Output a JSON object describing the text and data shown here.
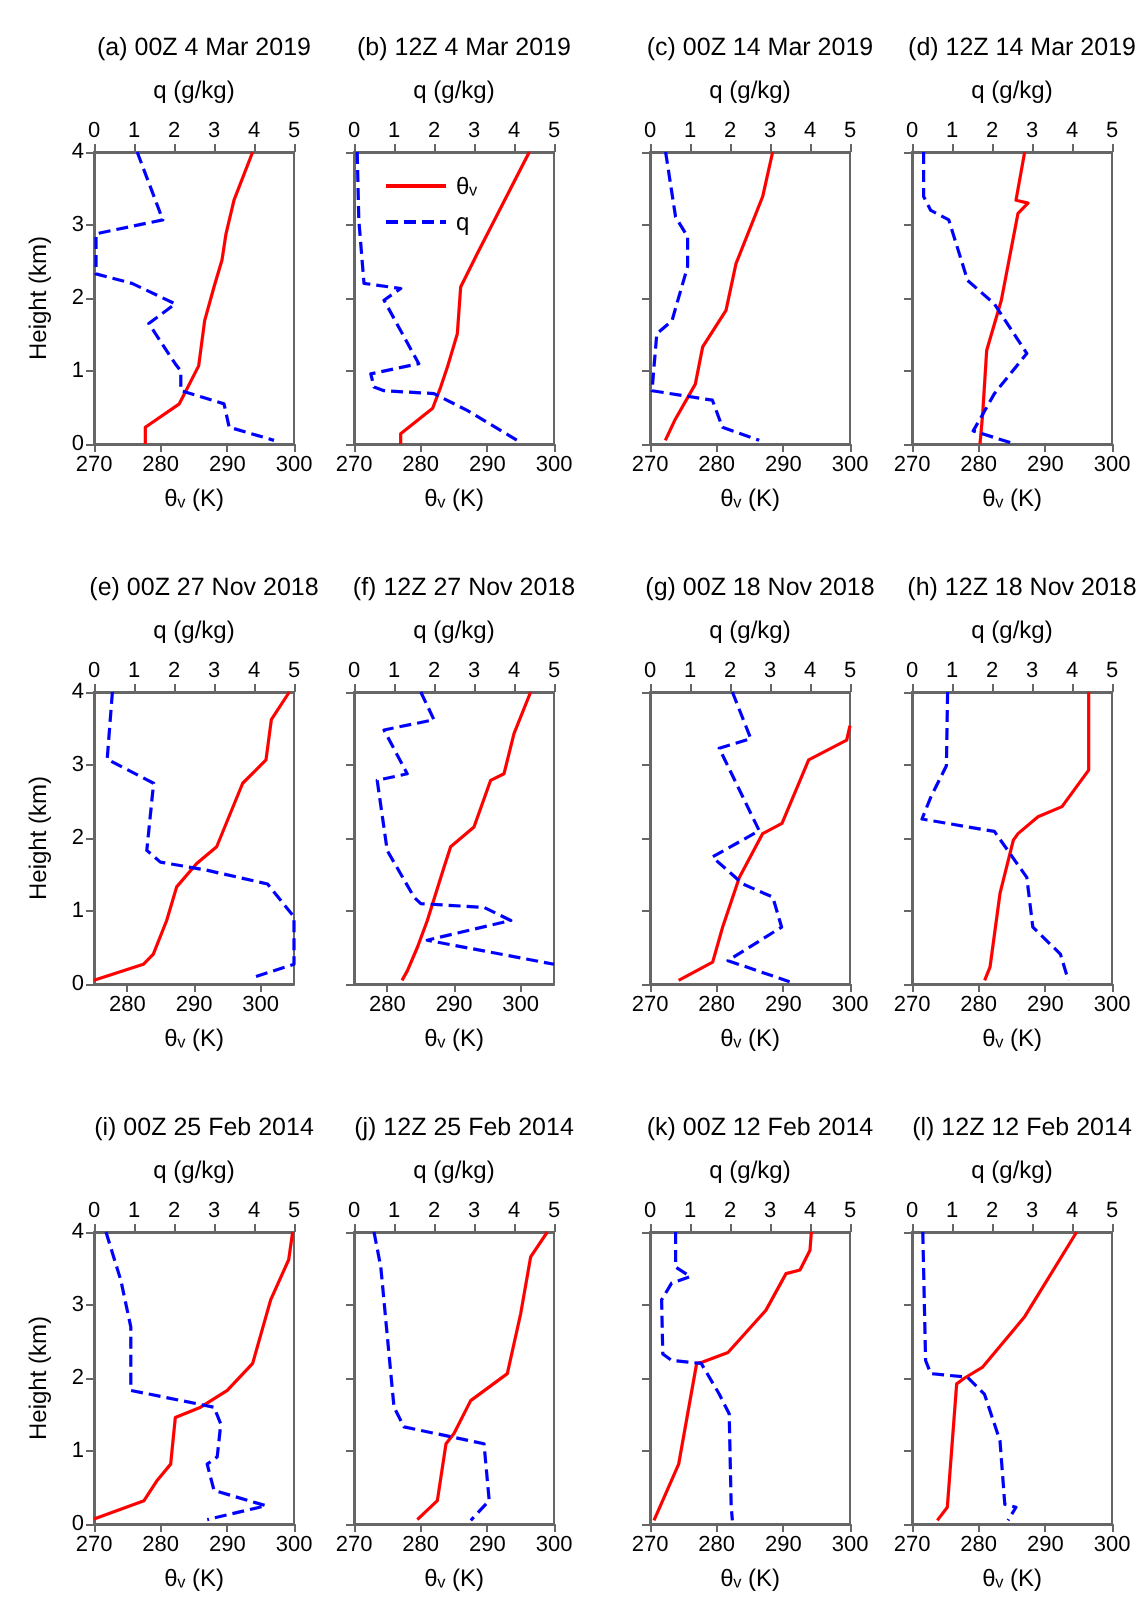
{
  "chart_data": [
    {
      "type": "line",
      "title": "(a) 00Z 4 Mar 2019",
      "xlabel": "θᵥ (K)",
      "x2label": "q (g/kg)",
      "ylabel": "Height (km)",
      "xlim": [
        270,
        300
      ],
      "xticks": [
        270,
        280,
        290,
        300
      ],
      "x2lim": [
        0,
        5
      ],
      "x2ticks": [
        0,
        1,
        2,
        3,
        4,
        5
      ],
      "ylim": [
        0,
        4
      ],
      "yticks": [
        0,
        1,
        2,
        3,
        4
      ],
      "marker": "none",
      "series": [
        {
          "color": "#ff0000",
          "line_style": "solid",
          "x": [
            277.7,
            277.7,
            282.8,
            285.7,
            286.6,
            288,
            289.2,
            289.8,
            291,
            293.8
          ],
          "values": [
            0,
            0.23,
            0.55,
            1.07,
            1.69,
            2.15,
            2.52,
            2.88,
            3.34,
            4
          ]
        },
        {
          "color": "#0000ff",
          "line_style": "dashed",
          "axis": "x2",
          "x": [
            1.08,
            1.72,
            0.05,
            0.05,
            0.95,
            2.03,
            1.37,
            2.03,
            2.17,
            2.17,
            3.25,
            3.38,
            4.5
          ],
          "values": [
            4,
            3.07,
            2.88,
            2.33,
            2.2,
            1.92,
            1.65,
            1.1,
            1.0,
            0.73,
            0.55,
            0.23,
            0.05
          ]
        }
      ]
    },
    {
      "type": "line",
      "title": "(b) 12Z 4 Mar 2019",
      "xlabel": "θᵥ (K)",
      "x2label": "q (g/kg)",
      "xlim": [
        270,
        300
      ],
      "xticks": [
        270,
        280,
        290,
        300
      ],
      "x2lim": [
        0,
        5
      ],
      "x2ticks": [
        0,
        1,
        2,
        3,
        4,
        5
      ],
      "ylim": [
        0,
        4
      ],
      "yticks": [
        0,
        1,
        2,
        3,
        4
      ],
      "tick_labels": "x",
      "marker": "none",
      "legend": "top left",
      "series": [
        {
          "name": "θᵥ",
          "color": "#ff0000",
          "line_style": "solid",
          "x": [
            277,
            277,
            281.8,
            283,
            284,
            285.5,
            286,
            288.5,
            296.3
          ],
          "values": [
            0,
            0.14,
            0.49,
            0.78,
            1.05,
            1.51,
            2.15,
            2.61,
            4
          ]
        },
        {
          "name": "q",
          "color": "#0000ff",
          "line_style": "dashed",
          "axis": "x2",
          "x": [
            0.08,
            0.12,
            0.25,
            1.17,
            0.75,
            1.62,
            0.42,
            0.5,
            0.75,
            2,
            2.83,
            4.08
          ],
          "values": [
            4,
            3.07,
            2.2,
            2.13,
            1.97,
            1.1,
            0.96,
            0.78,
            0.73,
            0.69,
            0.46,
            0.05
          ]
        }
      ]
    },
    {
      "type": "line",
      "title": "(c) 00Z 14 Mar 2019",
      "xlabel": "θᵥ (K)",
      "x2label": "q (g/kg)",
      "xlim": [
        270,
        300
      ],
      "xticks": [
        270,
        280,
        290,
        300
      ],
      "x2lim": [
        0,
        5
      ],
      "x2ticks": [
        0,
        1,
        2,
        3,
        4,
        5
      ],
      "ylim": [
        0,
        4
      ],
      "yticks": [
        0,
        1,
        2,
        3,
        4
      ],
      "tick_labels": "x",
      "marker": "none",
      "series": [
        {
          "color": "#ff0000",
          "line_style": "solid",
          "x": [
            272.3,
            273.8,
            276.8,
            277.9,
            281.4,
            282.9,
            286.9,
            288.4
          ],
          "values": [
            0.05,
            0.34,
            0.82,
            1.33,
            1.83,
            2.47,
            3.39,
            4
          ]
        },
        {
          "color": "#0000ff",
          "line_style": "dashed",
          "axis": "x2",
          "x": [
            0.39,
            0.64,
            0.94,
            0.94,
            0.55,
            0.17,
            0.05,
            1.56,
            1.81,
            2.73
          ],
          "values": [
            4,
            3.11,
            2.84,
            2.43,
            1.69,
            1.51,
            0.73,
            0.6,
            0.23,
            0.05
          ]
        }
      ]
    },
    {
      "type": "line",
      "title": "(d) 12Z 14 Mar 2019",
      "xlabel": "θᵥ (K)",
      "x2label": "q (g/kg)",
      "xlim": [
        270,
        300
      ],
      "xticks": [
        270,
        280,
        290,
        300
      ],
      "x2lim": [
        0,
        5
      ],
      "x2ticks": [
        0,
        1,
        2,
        3,
        4,
        5
      ],
      "ylim": [
        0,
        4
      ],
      "yticks": [
        0,
        1,
        2,
        3,
        4
      ],
      "tick_labels": "x",
      "marker": "none",
      "series": [
        {
          "color": "#ff0000",
          "line_style": "solid",
          "x": [
            280.2,
            280.6,
            281.2,
            283.4,
            285.9,
            287.4,
            285.6,
            286.9
          ],
          "values": [
            0,
            0.41,
            1.28,
            1.97,
            3.16,
            3.3,
            3.34,
            4
          ]
        },
        {
          "color": "#0000ff",
          "line_style": "dashed",
          "axis": "x2",
          "x": [
            0.29,
            0.29,
            0.47,
            0.92,
            1.39,
            2.06,
            2.87,
            2.06,
            1.73,
            1.53,
            2.57
          ],
          "values": [
            4,
            3.39,
            3.2,
            3.07,
            2.24,
            1.92,
            1.24,
            0.69,
            0.37,
            0.18,
            0
          ]
        }
      ]
    },
    {
      "type": "line",
      "title": "(e) 00Z 27 Nov 2018",
      "xlabel": "θᵥ (K)",
      "x2label": "q (g/kg)",
      "ylabel": "Height (km)",
      "xlim": [
        275,
        305
      ],
      "xticks": [
        280,
        290,
        300
      ],
      "x2lim": [
        0,
        5
      ],
      "x2ticks": [
        0,
        1,
        2,
        3,
        4,
        5
      ],
      "ylim": [
        0,
        4
      ],
      "yticks": [
        0,
        1,
        2,
        3,
        4
      ],
      "marker": "none",
      "series": [
        {
          "color": "#ff0000",
          "line_style": "solid",
          "x": [
            275,
            282.4,
            283.9,
            285.9,
            287.4,
            290.4,
            293.4,
            297.3,
            300.8,
            301.6,
            304.3
          ],
          "values": [
            0.05,
            0.27,
            0.41,
            0.87,
            1.33,
            1.65,
            1.88,
            2.75,
            3.07,
            3.62,
            4
          ]
        },
        {
          "color": "#0000ff",
          "line_style": "dashed",
          "axis": "x2",
          "x": [
            0.46,
            0.33,
            1.49,
            1.32,
            1.66,
            2.81,
            4.34,
            5,
            5,
            3.97
          ],
          "values": [
            4,
            3.08,
            2.75,
            1.83,
            1.67,
            1.56,
            1.37,
            0.92,
            0.27,
            0.09
          ]
        }
      ]
    },
    {
      "type": "line",
      "title": "(f) 12Z 27 Nov 2018",
      "xlabel": "θᵥ (K)",
      "x2label": "q (g/kg)",
      "xlim": [
        275,
        305
      ],
      "xticks": [
        280,
        290,
        300
      ],
      "x2lim": [
        0,
        5
      ],
      "x2ticks": [
        0,
        1,
        2,
        3,
        4,
        5
      ],
      "ylim": [
        0,
        4
      ],
      "yticks": [
        0,
        1,
        2,
        3,
        4
      ],
      "tick_labels": "x",
      "marker": "none",
      "series": [
        {
          "color": "#ff0000",
          "line_style": "solid",
          "x": [
            282.2,
            283,
            284.5,
            286,
            288.5,
            289.5,
            293,
            295.5,
            297.5,
            299,
            301.5
          ],
          "values": [
            0.05,
            0.18,
            0.5,
            0.87,
            1.6,
            1.88,
            2.15,
            2.79,
            2.88,
            3.43,
            4
          ]
        },
        {
          "color": "#0000ff",
          "line_style": "dashed",
          "axis": "x2",
          "x": [
            1.67,
            2,
            0.75,
            1.33,
            0.58,
            0.83,
            1.5,
            1.67,
            3.25,
            3.92,
            1.83,
            5
          ],
          "values": [
            4,
            3.62,
            3.48,
            2.88,
            2.79,
            1.83,
            1.19,
            1.1,
            1.05,
            0.87,
            0.6,
            0.27
          ]
        }
      ]
    },
    {
      "type": "line",
      "title": "(g) 00Z 18 Nov 2018",
      "xlabel": "θᵥ (K)",
      "x2label": "q (g/kg)",
      "xlim": [
        270,
        300
      ],
      "xticks": [
        270,
        280,
        290,
        300
      ],
      "x2lim": [
        0,
        5
      ],
      "x2ticks": [
        0,
        1,
        2,
        3,
        4,
        5
      ],
      "ylim": [
        0,
        4
      ],
      "yticks": [
        0,
        1,
        2,
        3,
        4
      ],
      "tick_labels": "x",
      "marker": "none",
      "series": [
        {
          "color": "#ff0000",
          "line_style": "solid",
          "x": [
            274.3,
            279.4,
            280.9,
            283.4,
            286.9,
            289.8,
            293.8,
            299.5,
            300
          ],
          "values": [
            0.05,
            0.3,
            0.78,
            1.46,
            2.06,
            2.2,
            3.07,
            3.34,
            3.54
          ]
        },
        {
          "color": "#0000ff",
          "line_style": "dashed",
          "axis": "x2",
          "x": [
            2.06,
            2.52,
            1.73,
            2.73,
            1.56,
            2.32,
            3.07,
            3.29,
            1.95,
            3.49
          ],
          "values": [
            4,
            3.36,
            3.23,
            2.1,
            1.74,
            1.37,
            1.19,
            0.78,
            0.32,
            0.03
          ]
        }
      ]
    },
    {
      "type": "line",
      "title": "(h) 12Z 18 Nov 2018",
      "xlabel": "θᵥ (K)",
      "x2label": "q (g/kg)",
      "xlim": [
        270,
        300
      ],
      "xticks": [
        270,
        280,
        290,
        300
      ],
      "x2lim": [
        0,
        5
      ],
      "x2ticks": [
        0,
        1,
        2,
        3,
        4,
        5
      ],
      "ylim": [
        0,
        4
      ],
      "yticks": [
        0,
        1,
        2,
        3,
        4
      ],
      "tick_labels": "x",
      "marker": "none",
      "series": [
        {
          "color": "#ff0000",
          "line_style": "solid",
          "x": [
            280.9,
            281.7,
            283.2,
            285.2,
            285.9,
            288.9,
            292.5,
            296.5,
            296.5
          ],
          "values": [
            0.05,
            0.23,
            1.24,
            1.97,
            2.06,
            2.29,
            2.43,
            2.93,
            4
          ]
        },
        {
          "color": "#0000ff",
          "line_style": "dashed",
          "axis": "x2",
          "x": [
            0.89,
            0.86,
            0.47,
            0.25,
            2.06,
            2.87,
            3.02,
            3.71,
            3.91
          ],
          "values": [
            4,
            2.99,
            2.56,
            2.26,
            2.09,
            1.46,
            0.78,
            0.41,
            0.05
          ]
        }
      ]
    },
    {
      "type": "line",
      "title": "(i) 00Z 25 Feb 2014",
      "xlabel": "θᵥ (K)",
      "x2label": "q (g/kg)",
      "ylabel": "Height (km)",
      "xlim": [
        270,
        300
      ],
      "xticks": [
        270,
        280,
        290,
        300
      ],
      "x2lim": [
        0,
        5
      ],
      "x2ticks": [
        0,
        1,
        2,
        3,
        4,
        5
      ],
      "ylim": [
        0,
        4
      ],
      "yticks": [
        0,
        1,
        2,
        3,
        4
      ],
      "marker": "none",
      "series": [
        {
          "color": "#ff0000",
          "line_style": "solid",
          "x": [
            270,
            277.5,
            279.5,
            281.5,
            282.2,
            286,
            290,
            293.8,
            296.5,
            299.2,
            299.8
          ],
          "values": [
            0.07,
            0.32,
            0.6,
            0.82,
            1.46,
            1.6,
            1.83,
            2.2,
            3.07,
            3.62,
            4
          ]
        },
        {
          "color": "#0000ff",
          "line_style": "dashed",
          "axis": "x2",
          "x": [
            0.3,
            0.67,
            0.92,
            0.92,
            3,
            3.17,
            3.08,
            2.83,
            3,
            4.3,
            2.83
          ],
          "values": [
            4,
            3.34,
            2.7,
            1.83,
            1.6,
            1.37,
            0.92,
            0.82,
            0.46,
            0.25,
            0.06
          ]
        }
      ]
    },
    {
      "type": "line",
      "title": "(j) 12Z 25 Feb 2014",
      "xlabel": "θᵥ (K)",
      "x2label": "q (g/kg)",
      "xlim": [
        270,
        300
      ],
      "xticks": [
        270,
        280,
        290,
        300
      ],
      "x2lim": [
        0,
        5
      ],
      "x2ticks": [
        0,
        1,
        2,
        3,
        4,
        5
      ],
      "ylim": [
        0,
        4
      ],
      "yticks": [
        0,
        1,
        2,
        3,
        4
      ],
      "tick_labels": "x",
      "marker": "none",
      "series": [
        {
          "color": "#ff0000",
          "line_style": "solid",
          "x": [
            279.5,
            282.5,
            283.8,
            285,
            287.5,
            293,
            295,
            296.5,
            299
          ],
          "values": [
            0.06,
            0.32,
            1.1,
            1.24,
            1.69,
            2.06,
            2.88,
            3.66,
            4
          ]
        },
        {
          "color": "#0000ff",
          "line_style": "dashed",
          "axis": "x2",
          "x": [
            0.5,
            0.67,
            1,
            1.25,
            3.25,
            3.38,
            2.92
          ],
          "values": [
            4,
            3.52,
            1.6,
            1.33,
            1.1,
            0.32,
            0.05
          ]
        }
      ]
    },
    {
      "type": "line",
      "title": "(k) 00Z 12 Feb 2014",
      "xlabel": "θᵥ (K)",
      "x2label": "q (g/kg)",
      "xlim": [
        270,
        300
      ],
      "xticks": [
        270,
        280,
        290,
        300
      ],
      "x2lim": [
        0,
        5
      ],
      "x2ticks": [
        0,
        1,
        2,
        3,
        4,
        5
      ],
      "ylim": [
        0,
        4
      ],
      "yticks": [
        0,
        1,
        2,
        3,
        4
      ],
      "tick_labels": "x",
      "marker": "none",
      "series": [
        {
          "color": "#ff0000",
          "line_style": "solid",
          "x": [
            270.6,
            274.3,
            277,
            277.9,
            281.7,
            287.4,
            290.4,
            292.5,
            294,
            294.2
          ],
          "values": [
            0.05,
            0.82,
            2.2,
            2.22,
            2.35,
            2.93,
            3.43,
            3.48,
            3.75,
            4
          ]
        },
        {
          "color": "#0000ff",
          "line_style": "dashed",
          "axis": "x2",
          "x": [
            0.64,
            0.64,
            1.01,
            0.54,
            0.29,
            0.32,
            0.54,
            1.28,
            1.73,
            1.98,
            2.03,
            2.06
          ],
          "values": [
            4,
            3.52,
            3.39,
            3.3,
            3.07,
            2.33,
            2.24,
            2.2,
            1.78,
            1.51,
            0.23,
            0.05
          ]
        }
      ]
    },
    {
      "type": "line",
      "title": "(l) 12Z 12 Feb 2014",
      "xlabel": "θᵥ (K)",
      "x2label": "q (g/kg)",
      "xlim": [
        270,
        300
      ],
      "xticks": [
        270,
        280,
        290,
        300
      ],
      "x2lim": [
        0,
        5
      ],
      "x2ticks": [
        0,
        1,
        2,
        3,
        4,
        5
      ],
      "ylim": [
        0,
        4
      ],
      "yticks": [
        0,
        1,
        2,
        3,
        4
      ],
      "tick_labels": "x",
      "marker": "none",
      "series": [
        {
          "color": "#ff0000",
          "line_style": "solid",
          "x": [
            273.8,
            275.3,
            276.7,
            277.9,
            280.6,
            286.9,
            294.7
          ],
          "values": [
            0.05,
            0.23,
            1.92,
            2,
            2.15,
            2.84,
            4
          ]
        },
        {
          "color": "#0000ff",
          "line_style": "dashed",
          "axis": "x2",
          "x": [
            0.27,
            0.34,
            0.47,
            1.39,
            1.81,
            2.2,
            2.32,
            2.6,
            2.4
          ],
          "values": [
            4,
            2.24,
            2.06,
            2.01,
            1.78,
            1.14,
            0.27,
            0.23,
            0.05
          ]
        }
      ]
    }
  ]
}
